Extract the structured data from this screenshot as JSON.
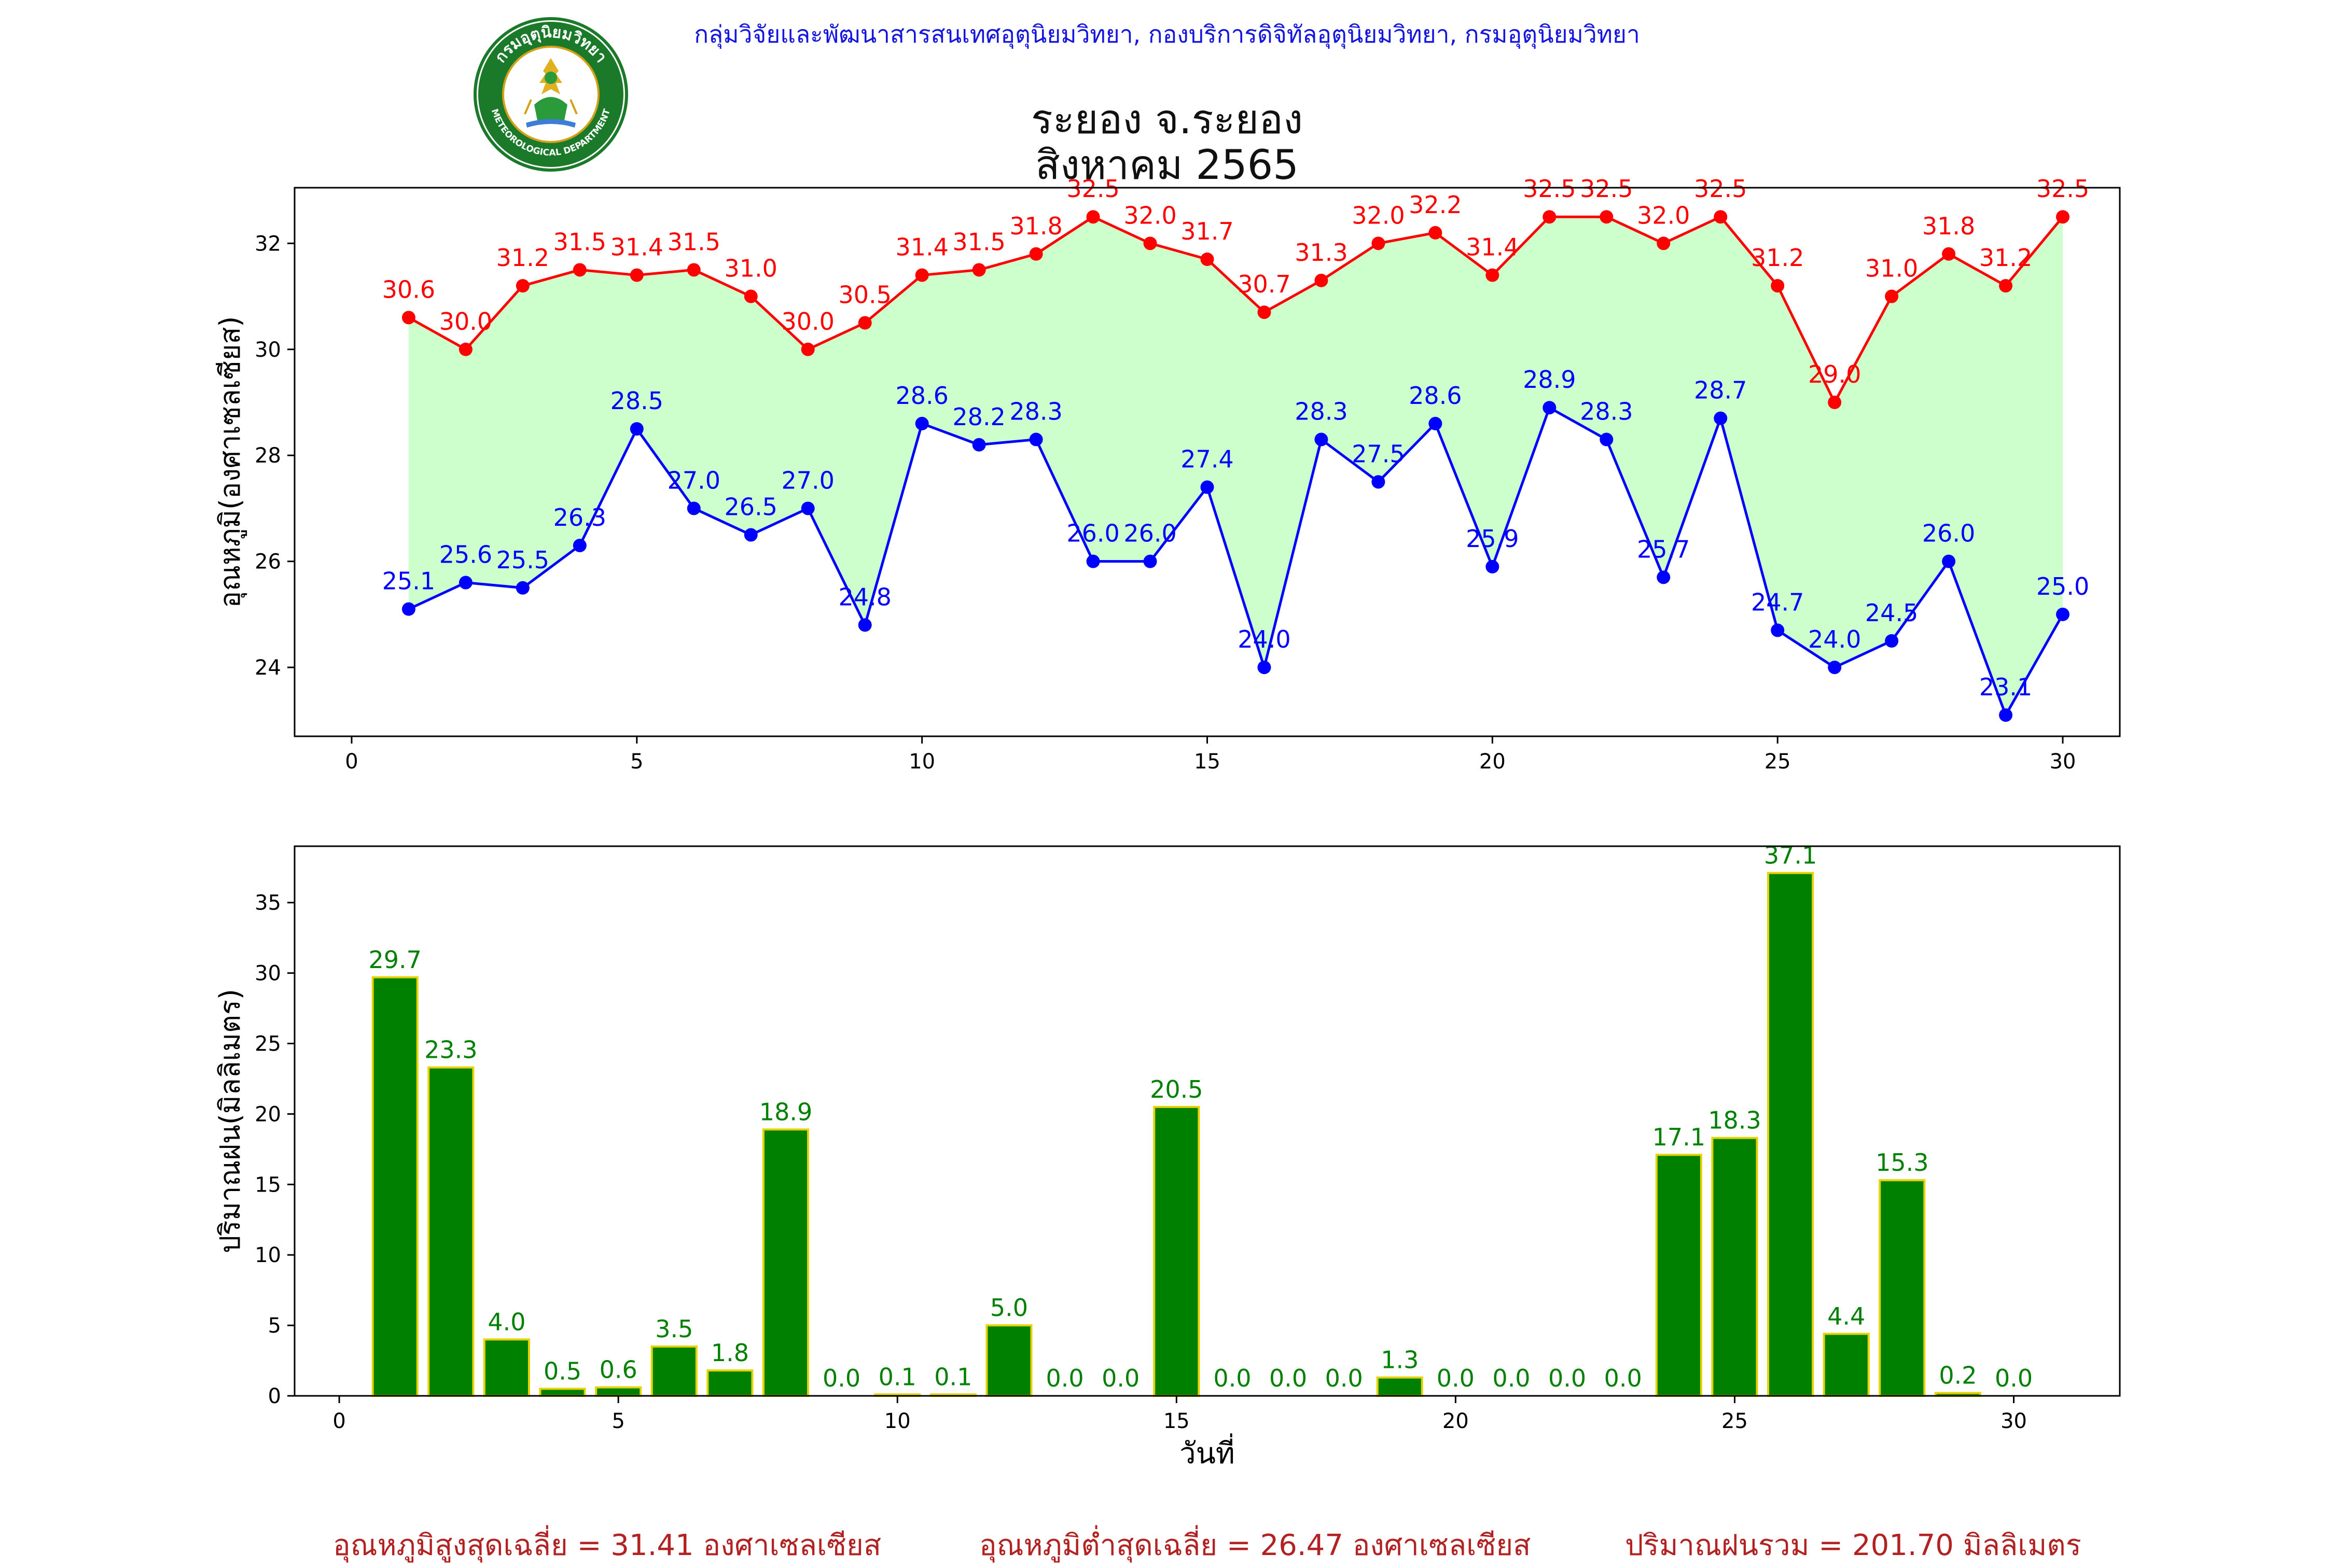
{
  "header": {
    "credit": "กลุ่มวิจัยและพัฒนาสารสนเทศอุตุนิยมวิทยา, กองบริการดิจิทัลอุตุนิยมวิทยา, กรมอุตุนิยมวิทยา",
    "station": "ระยอง จ.ระยอง",
    "month": "สิงหาคม 2565"
  },
  "logo": {
    "top_text": "กรมอุตุนิยมวิทยา",
    "bottom_text": "METEOROLOGICAL DEPARTMENT",
    "ring_color": "#1a7a2a"
  },
  "footer": {
    "avg_max": "อุณหภูมิสูงสุดเฉลี่ย = 31.41 องศาเซลเซียส",
    "avg_min": "อุณหภูมิต่ำสุดเฉลี่ย = 26.47 องศาเซลเซียส",
    "total_rain": "ปริมาณฝนรวม = 201.70 มิลลิเมตร"
  },
  "colors": {
    "max_line": "#ff0000",
    "min_line": "#0000ff",
    "fill": "#ccffcc",
    "bar_fill": "#008000",
    "bar_edge": "#e6d200",
    "rain_label": "#008000",
    "footer": "#b22222"
  },
  "chart_data": [
    {
      "type": "line",
      "ylabel": "อุณหภูมิ(องศาเซลเซียส)",
      "xlim": [
        -1,
        31
      ],
      "ylim": [
        22.7,
        33.05
      ],
      "xticks": [
        0,
        5,
        10,
        15,
        20,
        25,
        30
      ],
      "yticks": [
        24,
        26,
        28,
        30,
        32
      ],
      "x": [
        1,
        2,
        3,
        4,
        5,
        6,
        7,
        8,
        9,
        10,
        11,
        12,
        13,
        14,
        15,
        16,
        17,
        18,
        19,
        20,
        21,
        22,
        23,
        24,
        25,
        26,
        27,
        28,
        29,
        30
      ],
      "series": [
        {
          "values": [
            30.6,
            30.0,
            31.2,
            31.5,
            31.4,
            31.5,
            31.0,
            30.0,
            30.5,
            31.4,
            31.5,
            31.8,
            32.5,
            32.0,
            31.7,
            30.7,
            31.3,
            32.0,
            32.2,
            31.4,
            32.5,
            32.5,
            32.0,
            32.5,
            31.2,
            29.0,
            31.0,
            31.8,
            31.2,
            32.5
          ],
          "labels": [
            "30.6",
            "30.0",
            "31.2",
            "31.5",
            "31.4",
            "31.5",
            "31.0",
            "30.0",
            "30.5",
            "31.4",
            "31.5",
            "31.8",
            "32.5",
            "32.0",
            "31.7",
            "30.7",
            "31.3",
            "32.0",
            "32.2",
            "31.4",
            "32.5",
            "32.5",
            "32.0",
            "32.5",
            "31.2",
            "29.0",
            "31.0",
            "31.8",
            "31.2",
            "32.5"
          ]
        },
        {
          "values": [
            25.1,
            25.6,
            25.5,
            26.3,
            28.5,
            27.0,
            26.5,
            27.0,
            24.8,
            28.6,
            28.2,
            28.3,
            26.0,
            26.0,
            27.4,
            24.0,
            28.3,
            27.5,
            28.6,
            25.9,
            28.9,
            28.3,
            25.7,
            28.7,
            24.7,
            24.0,
            24.5,
            26.0,
            23.1,
            25.0
          ],
          "labels": [
            "25.1",
            "25.6",
            "25.5",
            "26.3",
            "28.5",
            "27.0",
            "26.5",
            "27.0",
            "24.8",
            "28.6",
            "28.2",
            "28.3",
            "26.0",
            "26.0",
            "27.4",
            "24.0",
            "28.3",
            "27.5",
            "28.6",
            "25.9",
            "28.9",
            "28.3",
            "25.7",
            "28.7",
            "24.7",
            "24.0",
            "24.5",
            "26.0",
            "23.1",
            "25.0"
          ]
        }
      ]
    },
    {
      "type": "bar",
      "xlabel": "วันที่",
      "ylabel": "ปริมาณฝน(มิลลิเมตร)",
      "xlim": [
        -0.8,
        31.9
      ],
      "ylim": [
        0,
        39
      ],
      "xticks": [
        0,
        5,
        10,
        15,
        20,
        25,
        30
      ],
      "yticks": [
        0,
        5,
        10,
        15,
        20,
        25,
        30,
        35
      ],
      "categories": [
        1,
        2,
        3,
        4,
        5,
        6,
        7,
        8,
        9,
        10,
        11,
        12,
        13,
        14,
        15,
        16,
        17,
        18,
        19,
        20,
        21,
        22,
        23,
        24,
        25,
        26,
        27,
        28,
        29,
        30
      ],
      "values": [
        29.7,
        23.3,
        4.0,
        0.5,
        0.6,
        3.5,
        1.8,
        18.9,
        0.0,
        0.1,
        0.1,
        5.0,
        0.0,
        0.0,
        20.5,
        0.0,
        0.0,
        0.0,
        1.3,
        0.0,
        0.0,
        0.0,
        0.0,
        17.1,
        18.3,
        37.1,
        4.4,
        15.3,
        0.2,
        0.0
      ],
      "labels": [
        "29.7",
        "23.3",
        "4.0",
        "0.5",
        "0.6",
        "3.5",
        "1.8",
        "18.9",
        "0.0",
        "0.1",
        "0.1",
        "5.0",
        "0.0",
        "0.0",
        "20.5",
        "0.0",
        "0.0",
        "0.0",
        "1.3",
        "0.0",
        "0.0",
        "0.0",
        "0.0",
        "17.1",
        "18.3",
        "37.1",
        "4.4",
        "15.3",
        "0.2",
        "0.0"
      ]
    }
  ]
}
